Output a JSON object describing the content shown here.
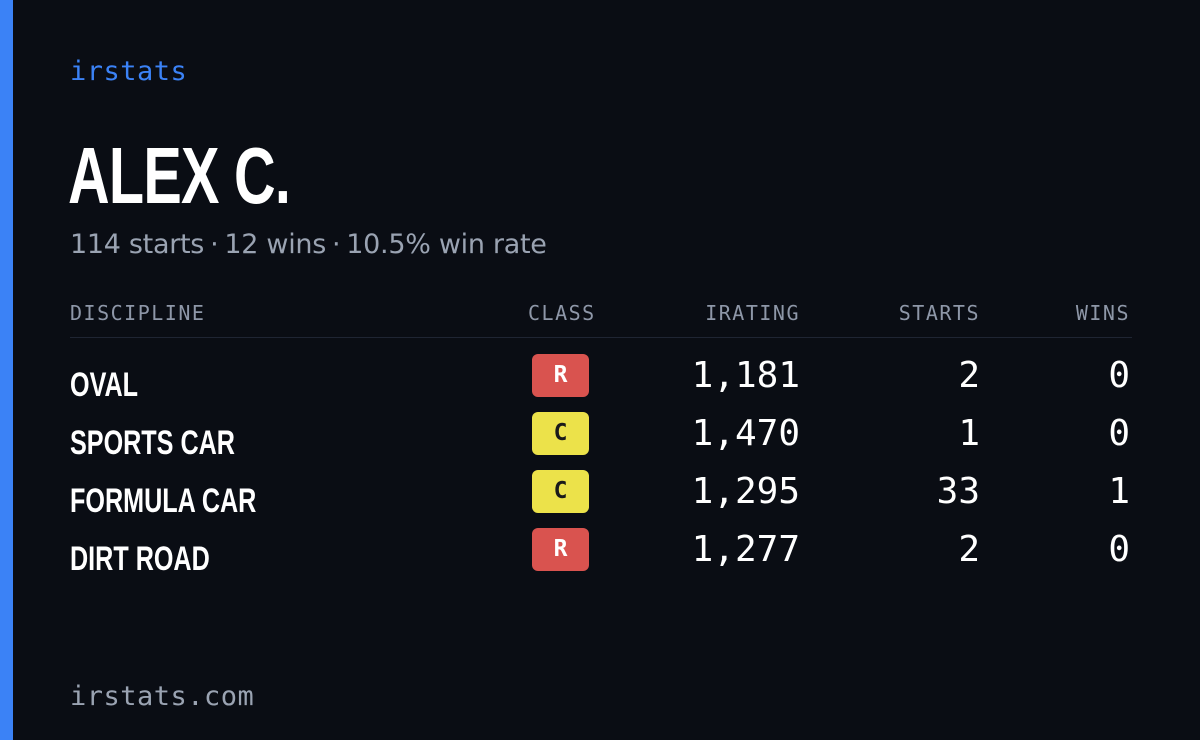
{
  "brand": "irstats",
  "player": {
    "name": "ALEX C.",
    "summary": {
      "starts": "114 starts",
      "wins": "12 wins",
      "win_rate": "10.5% win rate",
      "separator": "·"
    }
  },
  "table": {
    "headers": {
      "discipline": "DISCIPLINE",
      "class": "CLASS",
      "irating": "IRATING",
      "starts": "STARTS",
      "wins": "WINS"
    },
    "rows": [
      {
        "discipline": "OVAL",
        "class": "R",
        "class_color": "#d9534f",
        "class_text_color": "#ffffff",
        "irating": "1,181",
        "starts": "2",
        "wins": "0"
      },
      {
        "discipline": "SPORTS CAR",
        "class": "C",
        "class_color": "#ece24a",
        "class_text_color": "#1a1a1a",
        "irating": "1,470",
        "starts": "1",
        "wins": "0"
      },
      {
        "discipline": "FORMULA CAR",
        "class": "C",
        "class_color": "#ece24a",
        "class_text_color": "#1a1a1a",
        "irating": "1,295",
        "starts": "33",
        "wins": "1"
      },
      {
        "discipline": "DIRT ROAD",
        "class": "R",
        "class_color": "#d9534f",
        "class_text_color": "#ffffff",
        "irating": "1,277",
        "starts": "2",
        "wins": "0"
      }
    ]
  },
  "footer": "irstats.com",
  "colors": {
    "accent": "#3b82f6",
    "background": "#0a0d14",
    "muted_text": "#9aa3b2"
  }
}
